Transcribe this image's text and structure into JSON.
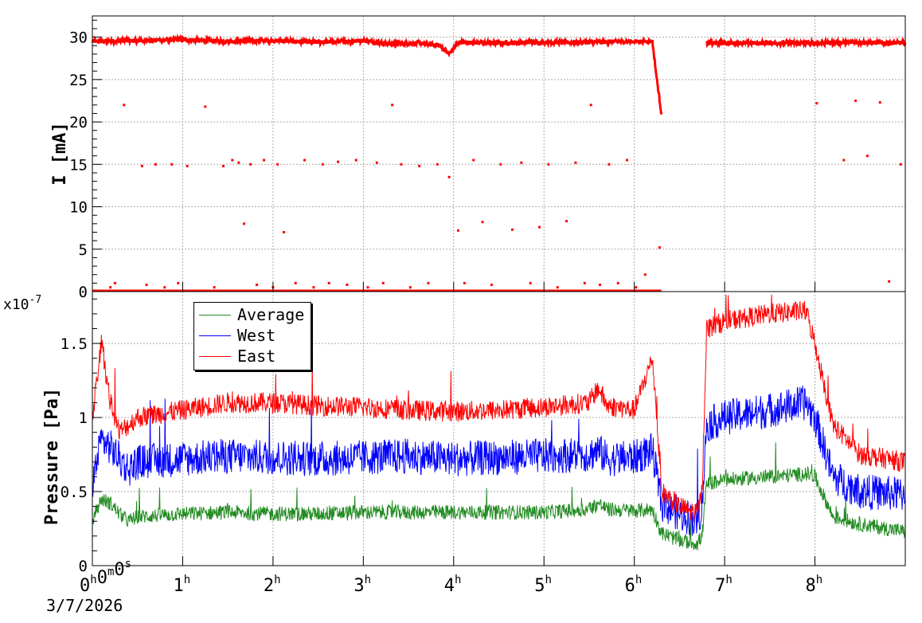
{
  "chart_data": [
    {
      "type": "scatter",
      "ylabel": "I [mA]",
      "ylim": [
        0,
        32.5
      ],
      "yticks": [
        0,
        5,
        10,
        15,
        20,
        25,
        30
      ],
      "xlim": [
        0,
        9
      ],
      "xunit": "hours",
      "grid": true,
      "color": "#ff0000",
      "series": [
        {
          "segments": [
            {
              "x": [
                0.0,
                0.5,
                1.0,
                1.5,
                2.0,
                2.5,
                3.0,
                3.3,
                3.6,
                3.85,
                3.95,
                4.05,
                4.5,
                5.0,
                5.5,
                6.0,
                6.2
              ],
              "y": [
                29.5,
                29.6,
                29.7,
                29.5,
                29.6,
                29.4,
                29.6,
                29.2,
                29.3,
                29.0,
                28.0,
                29.4,
                29.3,
                29.4,
                29.4,
                29.5,
                29.5
              ]
            },
            {
              "x": [
                6.2,
                6.25,
                6.3
              ],
              "y": [
                29.5,
                25.0,
                21.0
              ]
            },
            {
              "x": [
                6.8,
                7.0,
                7.5,
                8.0,
                8.5,
                9.0
              ],
              "y": [
                29.3,
                29.3,
                29.3,
                29.3,
                29.4,
                29.3
              ]
            }
          ],
          "zero_x": [
            0.0,
            6.3
          ],
          "outliers_x": [
            0.2,
            0.25,
            0.35,
            0.55,
            0.6,
            0.7,
            0.8,
            0.88,
            0.95,
            1.05,
            1.25,
            1.35,
            1.45,
            1.55,
            1.62,
            1.68,
            1.75,
            1.82,
            1.9,
            2.0,
            2.05,
            2.12,
            2.25,
            2.35,
            2.45,
            2.55,
            2.62,
            2.72,
            2.82,
            2.92,
            3.05,
            3.15,
            3.22,
            3.32,
            3.42,
            3.52,
            3.62,
            3.72,
            3.82,
            3.95,
            4.05,
            4.12,
            4.22,
            4.32,
            4.42,
            4.52,
            4.65,
            4.75,
            4.85,
            4.95,
            5.05,
            5.15,
            5.25,
            5.35,
            5.45,
            5.52,
            5.62,
            5.72,
            5.82,
            5.92,
            6.02,
            6.12,
            6.28,
            8.02,
            8.32,
            8.45,
            8.58,
            8.72,
            8.82,
            8.95
          ],
          "outliers_y": [
            0.5,
            1.0,
            22.0,
            14.8,
            0.8,
            15.0,
            0.5,
            15.0,
            1.0,
            14.8,
            21.8,
            0.5,
            14.8,
            15.5,
            15.2,
            8.0,
            15.0,
            0.8,
            15.5,
            0.5,
            15.0,
            7.0,
            1.0,
            15.5,
            0.5,
            15.0,
            1.0,
            15.3,
            0.8,
            15.5,
            0.5,
            15.2,
            1.0,
            22.0,
            15.0,
            0.5,
            14.8,
            1.0,
            15.0,
            13.5,
            7.2,
            1.0,
            15.5,
            8.2,
            0.8,
            15.0,
            7.3,
            15.2,
            1.0,
            7.6,
            15.0,
            0.5,
            8.3,
            15.2,
            1.0,
            22.0,
            0.8,
            15.0,
            1.0,
            15.5,
            0.5,
            2.0,
            5.2,
            22.2,
            15.5,
            22.5,
            16.0,
            22.3,
            1.2,
            15.0
          ]
        }
      ]
    },
    {
      "type": "line",
      "ylabel": "Pressure [Pa]",
      "yexponent": "x10^-7",
      "ylim": [
        0,
        1.85
      ],
      "yticks": [
        0,
        0.5,
        1,
        1.5
      ],
      "ytick_labels": [
        "0",
        "0.5",
        "1",
        "1.5"
      ],
      "xlim": [
        0,
        9
      ],
      "xunit": "hours",
      "xticks": [
        0,
        1,
        2,
        3,
        4,
        5,
        6,
        7,
        8
      ],
      "xtick_labels": [
        "0h0m0s",
        "1h",
        "2h",
        "3h",
        "4h",
        "5h",
        "6h",
        "7h",
        "8h"
      ],
      "grid": true,
      "legend": "top-left",
      "x": [
        0,
        0.1,
        0.2,
        0.3,
        0.4,
        0.5,
        1.0,
        1.5,
        2.0,
        2.5,
        3.0,
        3.5,
        4.0,
        4.5,
        5.0,
        5.5,
        5.6,
        5.7,
        6.0,
        6.2,
        6.25,
        6.3,
        6.5,
        6.7,
        6.75,
        6.8,
        7.0,
        7.5,
        7.9,
        8.0,
        8.2,
        8.5,
        9.0
      ],
      "series": [
        {
          "name": "Average",
          "color": "#228b22",
          "noise": 0.05,
          "values": [
            0.3,
            0.45,
            0.42,
            0.35,
            0.3,
            0.33,
            0.35,
            0.36,
            0.35,
            0.35,
            0.36,
            0.36,
            0.36,
            0.36,
            0.36,
            0.38,
            0.42,
            0.38,
            0.37,
            0.38,
            0.3,
            0.22,
            0.17,
            0.15,
            0.2,
            0.55,
            0.58,
            0.6,
            0.62,
            0.6,
            0.33,
            0.28,
            0.23
          ]
        },
        {
          "name": "West",
          "color": "#0000ff",
          "noise": 0.12,
          "values": [
            0.55,
            0.85,
            0.8,
            0.72,
            0.65,
            0.7,
            0.72,
            0.74,
            0.73,
            0.72,
            0.73,
            0.74,
            0.72,
            0.73,
            0.74,
            0.75,
            0.78,
            0.72,
            0.73,
            0.78,
            0.6,
            0.42,
            0.35,
            0.3,
            0.4,
            0.95,
            1.0,
            1.05,
            1.1,
            1.0,
            0.6,
            0.5,
            0.48
          ]
        },
        {
          "name": "East",
          "color": "#ff0000",
          "noise": 0.07,
          "values": [
            1.0,
            1.5,
            1.1,
            0.9,
            0.95,
            1.0,
            1.05,
            1.1,
            1.1,
            1.08,
            1.07,
            1.05,
            1.04,
            1.05,
            1.07,
            1.1,
            1.2,
            1.08,
            1.05,
            1.4,
            1.0,
            0.5,
            0.4,
            0.35,
            0.5,
            1.6,
            1.65,
            1.7,
            1.72,
            1.5,
            0.95,
            0.75,
            0.7
          ]
        }
      ]
    }
  ],
  "date_label": "3/7/2026"
}
